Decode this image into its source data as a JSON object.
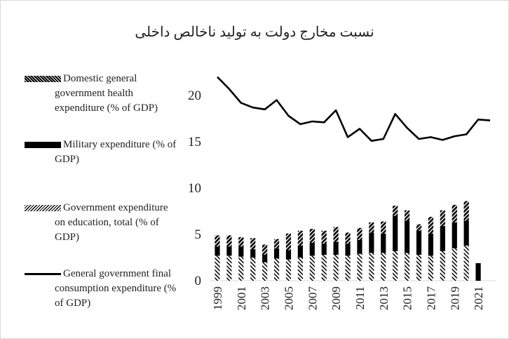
{
  "chart_data": {
    "type": "bar-line",
    "title": "نسبت مخارج دولت به تولید ناخالص داخلی",
    "categories": [
      "1999",
      null,
      "2001",
      null,
      "2003",
      null,
      "2005",
      null,
      "2007",
      null,
      "2009",
      null,
      "2011",
      null,
      "2013",
      null,
      "2015",
      null,
      "2017",
      null,
      "2019",
      null,
      "2021",
      null
    ],
    "ylim": [
      0,
      22.5
    ],
    "yticks": [
      0,
      5,
      10,
      15,
      20
    ],
    "series": [
      {
        "name": "Domestic general government health expenditure (% of GDP)",
        "type": "bar",
        "pattern": "dense",
        "color": "#000000",
        "values": [
          1.2,
          1.2,
          1.0,
          1.2,
          1.1,
          1.0,
          1.8,
          1.6,
          1.5,
          1.4,
          1.6,
          1.2,
          1.3,
          1.1,
          1.3,
          1.1,
          1.1,
          0.7,
          1.8,
          1.7,
          1.9,
          2.1,
          null,
          null
        ]
      },
      {
        "name": "Military expenditure (% of GDP)",
        "type": "bar",
        "pattern": "solid",
        "color": "#000000",
        "values": [
          1.0,
          1.0,
          1.1,
          0.9,
          0.8,
          1.1,
          1.0,
          1.3,
          1.4,
          1.2,
          1.4,
          1.3,
          1.5,
          2.2,
          2.1,
          3.8,
          3.5,
          2.6,
          2.4,
          2.7,
          2.8,
          2.7,
          1.9,
          null
        ]
      },
      {
        "name": "Government expenditure on education, total (% of GDP)",
        "type": "bar",
        "pattern": "light",
        "color": "#000000",
        "values": [
          2.7,
          2.7,
          2.6,
          2.5,
          2.0,
          2.4,
          2.3,
          2.5,
          2.7,
          2.8,
          2.8,
          2.7,
          2.9,
          3.0,
          3.0,
          3.2,
          3.0,
          2.8,
          2.7,
          3.2,
          3.5,
          3.8,
          null,
          null
        ]
      },
      {
        "name": "General government final consumption expenditure (% of GDP)",
        "type": "line",
        "color": "#000000",
        "values": [
          22.0,
          20.7,
          19.2,
          18.7,
          18.5,
          19.5,
          17.8,
          16.9,
          17.2,
          17.1,
          18.4,
          15.5,
          16.4,
          15.1,
          15.3,
          18.0,
          16.5,
          15.3,
          15.5,
          15.2,
          15.6,
          15.8,
          17.4,
          17.3
        ]
      }
    ]
  }
}
